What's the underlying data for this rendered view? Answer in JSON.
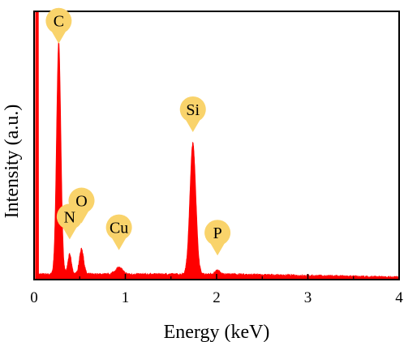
{
  "chart_data": {
    "type": "area",
    "xlabel": "Energy (keV)",
    "ylabel": "Intensity (a.u.)",
    "xlim": [
      0,
      4
    ],
    "ylim": [
      0,
      100
    ],
    "x_ticks": [
      "0",
      "1",
      "2",
      "3",
      "4"
    ],
    "y_ticks_labeled": false,
    "grid": false,
    "legend": "none",
    "series_color": "#ff0000",
    "marker_color": "#f9d36b",
    "background": "",
    "baseline": 1.5,
    "peaks": [
      {
        "label": "C",
        "energy": 0.27,
        "height": 87,
        "width": 0.024
      },
      {
        "label": "N",
        "energy": 0.39,
        "height": 7.5,
        "width": 0.02
      },
      {
        "label": "O",
        "energy": 0.52,
        "height": 9.5,
        "width": 0.024
      },
      {
        "label": "Cu",
        "energy": 0.93,
        "height": 2.5,
        "width": 0.04
      },
      {
        "label": "Si",
        "energy": 1.74,
        "height": 49,
        "width": 0.033
      },
      {
        "label": "P",
        "energy": 2.01,
        "height": 1.5,
        "width": 0.025
      }
    ],
    "low_energy_edge": {
      "energy": 0.03,
      "height": 100
    },
    "annotations": [
      {
        "label": "C",
        "energy": 0.27,
        "tip_y": 88
      },
      {
        "label": "N",
        "energy": 0.39,
        "tip_y": 15
      },
      {
        "label": "O",
        "energy": 0.52,
        "tip_y": 21
      },
      {
        "label": "Cu",
        "energy": 0.93,
        "tip_y": 11
      },
      {
        "label": "Si",
        "energy": 1.74,
        "tip_y": 55
      },
      {
        "label": "P",
        "energy": 2.01,
        "tip_y": 9
      }
    ]
  }
}
